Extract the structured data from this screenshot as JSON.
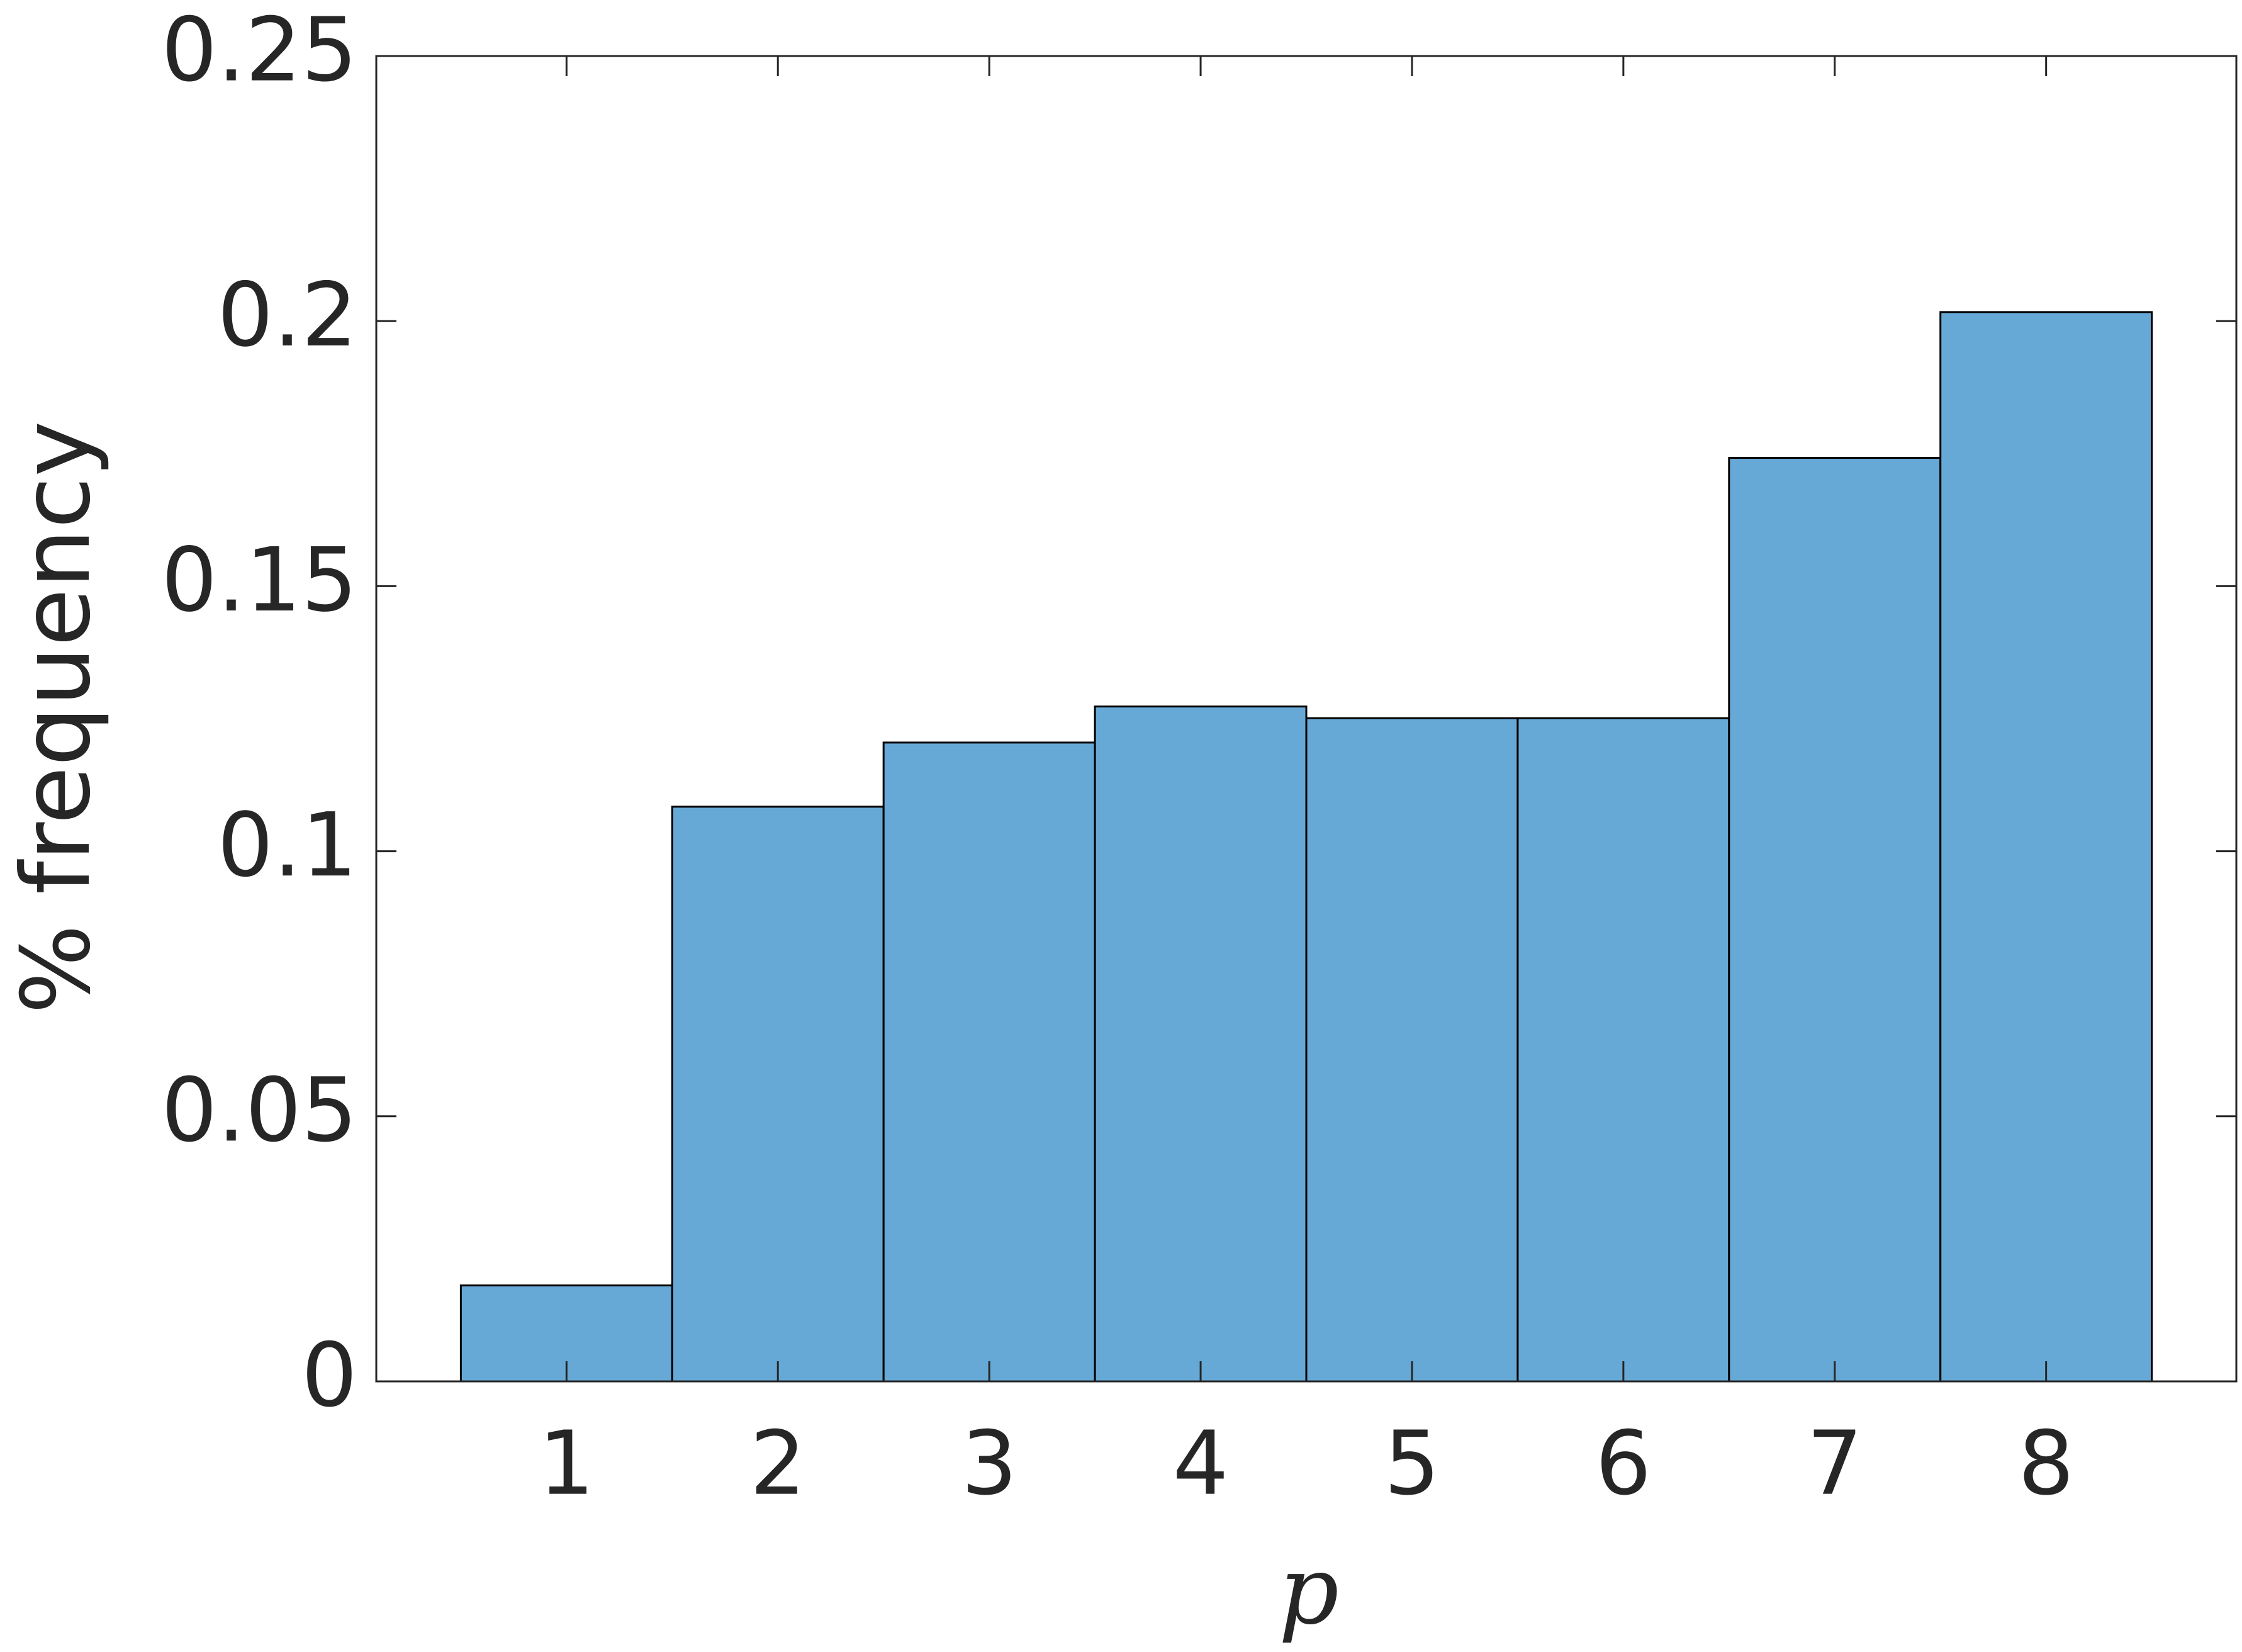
{
  "chart_data": {
    "type": "histogram",
    "x_label": "p",
    "y_label": "% frequency",
    "bins": [
      0.5,
      1.5,
      2.5,
      3.5,
      4.5,
      5.5,
      6.5,
      7.5,
      8.5
    ],
    "values": [
      0.0181,
      0.1084,
      0.1205,
      0.1273,
      0.1251,
      0.1251,
      0.1742,
      0.2017
    ],
    "color": "#67a9d6",
    "xlim": [
      0.1,
      8.9
    ],
    "xticks": [
      1,
      2,
      3,
      4,
      5,
      6,
      7,
      8
    ],
    "ylim": [
      0,
      0.25
    ],
    "yticks": [
      0,
      0.05,
      0.1,
      0.15,
      0.2,
      0.25
    ]
  }
}
